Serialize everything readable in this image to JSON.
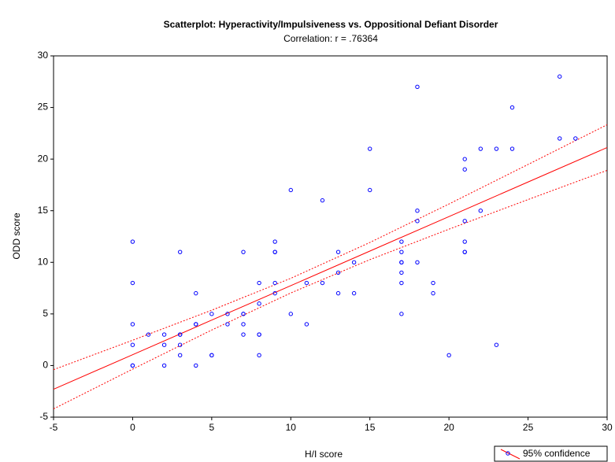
{
  "chart_data": {
    "type": "scatter",
    "title": "Scatterplot: Hyperactivity/Impulsiveness  vs. Oppositional Defiant Disorder",
    "subtitle": "Correlation: r = .76364",
    "xlabel": "H/I score",
    "ylabel": "ODD score",
    "xlim": [
      -5,
      30
    ],
    "xticks": [
      -5,
      0,
      5,
      10,
      15,
      20,
      25,
      30
    ],
    "ylim": [
      -5,
      30
    ],
    "yticks": [
      -5,
      0,
      5,
      10,
      15,
      20,
      25,
      30
    ],
    "grid": false,
    "legend": "bottom-right",
    "series": [
      {
        "name": "95% confidence",
        "color": "#0000ff",
        "x": [
          0,
          0,
          0,
          0,
          0,
          0,
          1,
          2,
          2,
          2,
          3,
          3,
          3,
          3,
          3,
          4,
          4,
          4,
          4,
          5,
          5,
          5,
          6,
          6,
          7,
          7,
          7,
          7,
          7,
          8,
          8,
          8,
          8,
          8,
          9,
          9,
          9,
          9,
          9,
          10,
          10,
          11,
          11,
          12,
          12,
          13,
          13,
          13,
          14,
          14,
          15,
          15,
          17,
          17,
          17,
          17,
          17,
          17,
          17,
          18,
          18,
          18,
          18,
          19,
          19,
          20,
          21,
          21,
          21,
          21,
          21,
          21,
          22,
          22,
          23,
          23,
          24,
          24,
          27,
          27,
          28
        ],
        "values": [
          12,
          8,
          4,
          2,
          0,
          0,
          3,
          3,
          2,
          0,
          11,
          3,
          3,
          2,
          1,
          7,
          4,
          4,
          0,
          5,
          1,
          1,
          5,
          4,
          11,
          5,
          5,
          4,
          3,
          8,
          6,
          3,
          3,
          1,
          12,
          11,
          11,
          8,
          7,
          17,
          5,
          8,
          4,
          16,
          8,
          11,
          9,
          7,
          10,
          7,
          21,
          17,
          12,
          11,
          10,
          10,
          9,
          8,
          5,
          27,
          15,
          14,
          10,
          8,
          7,
          1,
          20,
          19,
          14,
          12,
          11,
          11,
          21,
          15,
          21,
          2,
          25,
          21,
          28,
          22,
          22
        ]
      }
    ],
    "fit": {
      "color": "#ff0000",
      "x": [
        -5,
        0,
        5,
        10,
        15,
        20,
        25,
        30
      ],
      "values": [
        -2.3,
        1.05,
        4.4,
        7.74,
        11.09,
        14.43,
        17.78,
        21.12
      ],
      "upper": [
        -0.4,
        2.45,
        5.36,
        8.45,
        11.92,
        15.65,
        19.48,
        23.33
      ],
      "lower": [
        -4.2,
        -0.35,
        3.44,
        7.03,
        10.26,
        13.21,
        16.08,
        18.91
      ]
    }
  }
}
